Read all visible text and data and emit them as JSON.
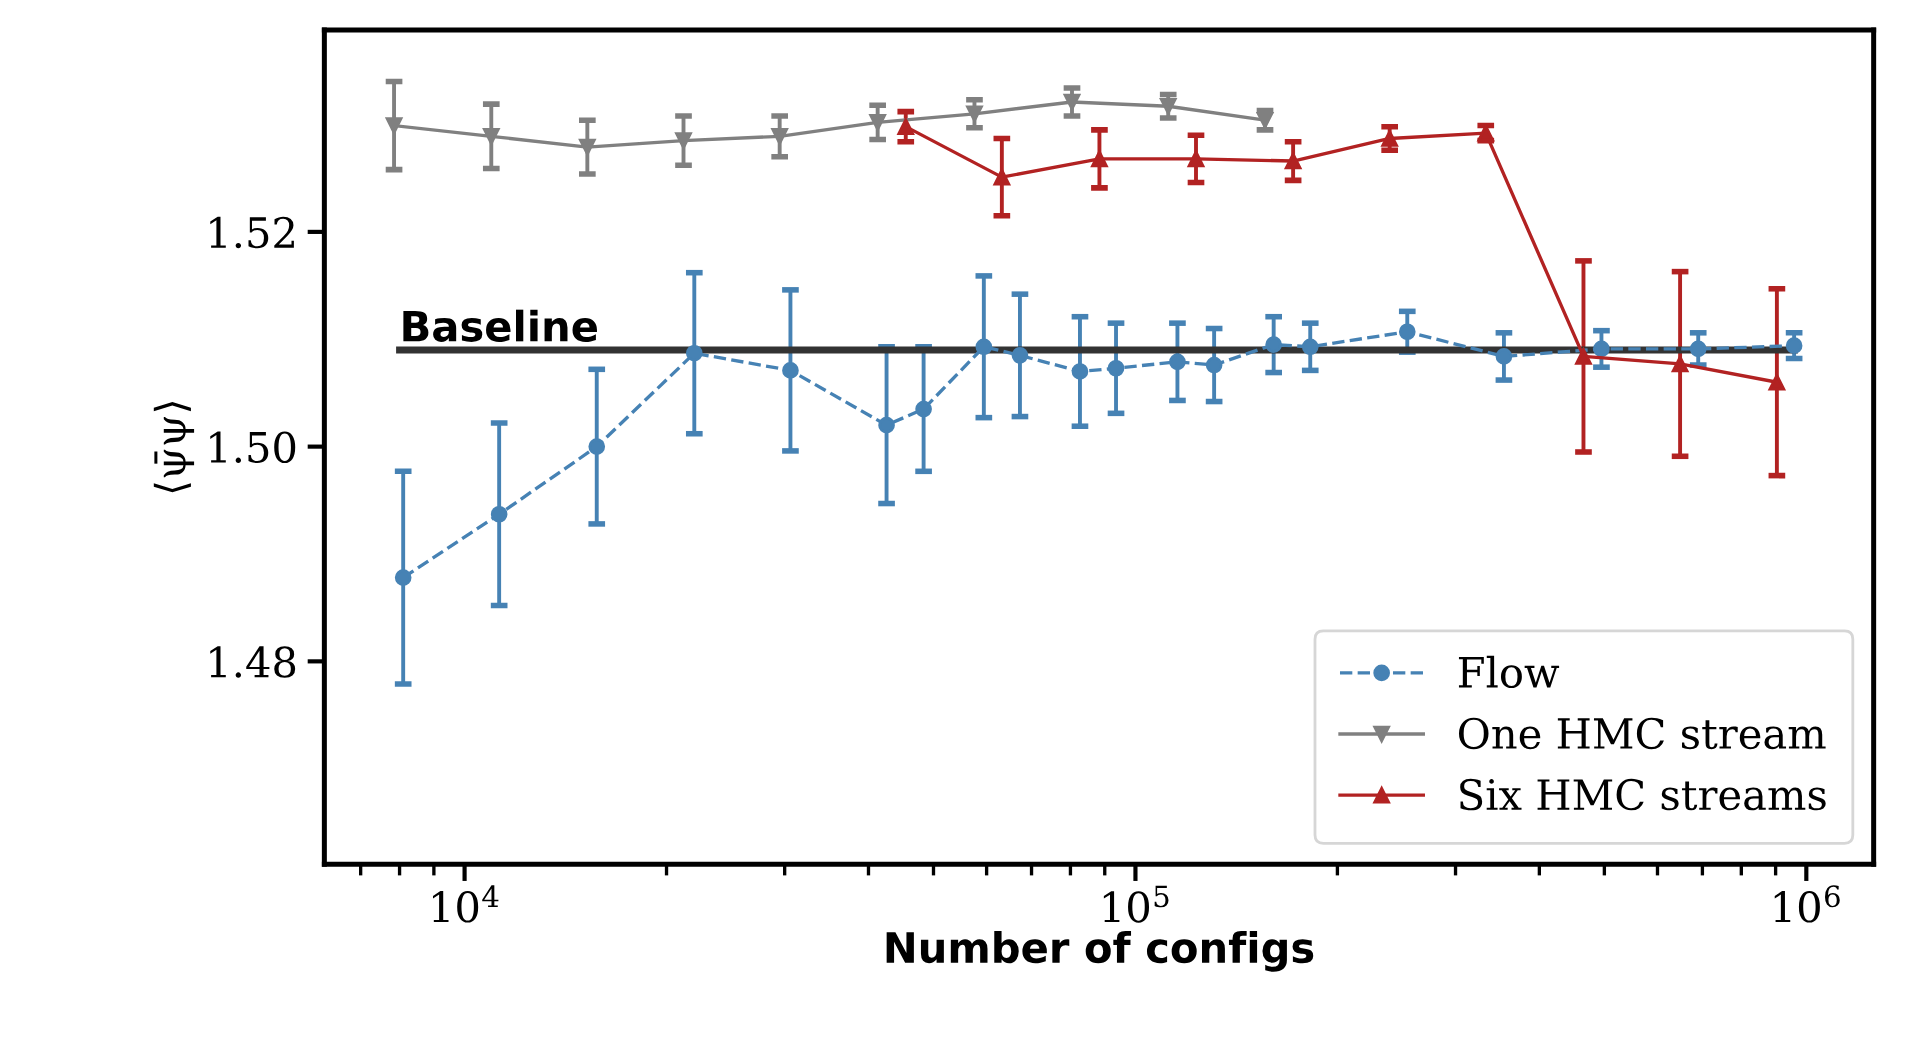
{
  "chart_data": {
    "type": "line",
    "xlabel": "Number of configs",
    "ylabel": "⟨ψ̄ψ⟩",
    "log": "x",
    "xlim": [
      6180,
      1260000
    ],
    "ylim": [
      1.4611,
      1.5388
    ],
    "xticks": [
      {
        "value": 10000,
        "label": "10$^{4}$"
      },
      {
        "value": 100000,
        "label": "10$^{5}$"
      },
      {
        "value": 1000000,
        "label": "10$^{6}$"
      }
    ],
    "yticks": [
      {
        "value": 1.48,
        "label": "1.48"
      },
      {
        "value": 1.5,
        "label": "1.50"
      },
      {
        "value": 1.52,
        "label": "1.52"
      }
    ],
    "grid": false,
    "legend": "bottom right",
    "series": [
      {
        "name": "Flow",
        "color": "#4682b4",
        "marker": "circle",
        "line_style": "dashed",
        "x": [
          8100,
          11260,
          15740,
          22000,
          30600,
          42560,
          48330,
          59430,
          67270,
          82660,
          93550,
          115500,
          131000,
          160700,
          182200,
          254200,
          354200,
          495000,
          690000,
          959000
        ],
        "values": [
          1.4878,
          1.4937,
          1.5,
          1.5087,
          1.5071,
          1.502,
          1.5035,
          1.5093,
          1.5085,
          1.507,
          1.5073,
          1.5079,
          1.5076,
          1.5095,
          1.5093,
          1.5107,
          1.5084,
          1.5091,
          1.5091,
          1.5094
        ],
        "errors": [
          0.0099,
          0.0085,
          0.0072,
          0.0075,
          0.0075,
          0.0073,
          0.0058,
          0.0066,
          0.0057,
          0.0051,
          0.0042,
          0.0036,
          0.0034,
          0.0026,
          0.0022,
          0.0019,
          0.0022,
          0.0017,
          0.0015,
          0.0012
        ]
      },
      {
        "name": "One HMC stream",
        "color": "#808080",
        "marker": "triangle_down",
        "line_style": "solid",
        "x": [
          7850,
          10960,
          15240,
          21200,
          29490,
          41280,
          57550,
          80430,
          111900,
          156000
        ],
        "values": [
          1.5299,
          1.5289,
          1.5279,
          1.5285,
          1.5289,
          1.5302,
          1.531,
          1.5321,
          1.5317,
          1.5304
        ],
        "errors": [
          0.0041,
          0.003,
          0.0025,
          0.0023,
          0.0019,
          0.0016,
          0.0013,
          0.0013,
          0.0011,
          0.0009
        ]
      },
      {
        "name": "Six HMC streams",
        "color": "#b22222",
        "marker": "triangle",
        "line_style": "solid",
        "x": [
          45460,
          63220,
          88370,
          123100,
          171800,
          239300,
          332800,
          465400,
          648400,
          903900
        ],
        "values": [
          1.5298,
          1.5251,
          1.5268,
          1.5268,
          1.5266,
          1.5287,
          1.5292,
          1.5084,
          1.5077,
          1.506
        ],
        "errors": [
          0.0014,
          0.0036,
          0.0027,
          0.0022,
          0.0018,
          0.0011,
          0.0007,
          0.0089,
          0.0086,
          0.0087
        ]
      },
      {
        "name": "Baseline",
        "color": "#333333",
        "marker": "none",
        "line_style": "solid",
        "x": [
          8000,
          960000
        ],
        "values": [
          1.509,
          1.509
        ]
      }
    ]
  }
}
